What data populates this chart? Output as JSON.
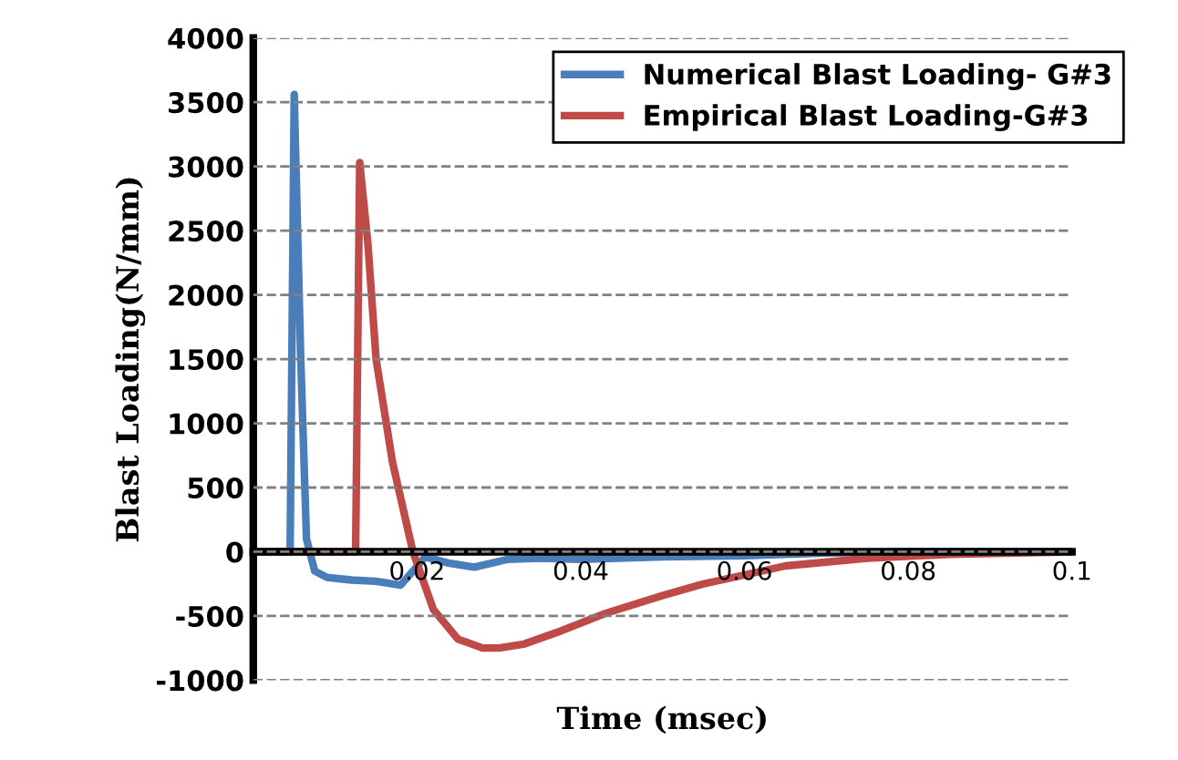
{
  "chart_data": {
    "type": "line",
    "xlabel": "Time (msec)",
    "ylabel": "Blast Loading(N/mm)",
    "xlim": [
      0,
      0.1
    ],
    "ylim": [
      -1000,
      4000
    ],
    "xticks": [
      {
        "value": 0,
        "label": null
      },
      0.02,
      0.04,
      0.06,
      0.08,
      0.1
    ],
    "yticks": [
      -1000,
      -500,
      0,
      500,
      1000,
      1500,
      2000,
      2500,
      3000,
      3500,
      4000
    ],
    "grid": "y",
    "legend": "top right",
    "marker": "none",
    "line_style": "solid",
    "series": [
      {
        "name": "Numerical Blast Loading- G#3",
        "color": "#4a7ebb",
        "x": [
          0,
          0.0045,
          0.005,
          0.0058,
          0.0065,
          0.0075,
          0.009,
          0.012,
          0.015,
          0.018,
          0.0195,
          0.021,
          0.024,
          0.027,
          0.031,
          0.035,
          0.04,
          0.05,
          0.06,
          0.07,
          0.08,
          0.1
        ],
        "values": [
          0,
          0,
          3560,
          1500,
          100,
          -150,
          -200,
          -220,
          -230,
          -260,
          -150,
          -40,
          -90,
          -120,
          -60,
          -50,
          -60,
          -40,
          -30,
          -10,
          0,
          0
        ]
      },
      {
        "name": "Empirical Blast Loading-G#3",
        "color": "#be4b48",
        "x": [
          0,
          0.0125,
          0.013,
          0.014,
          0.015,
          0.017,
          0.0195,
          0.022,
          0.025,
          0.028,
          0.03,
          0.033,
          0.037,
          0.043,
          0.05,
          0.055,
          0.065,
          0.075,
          0.085,
          0.1
        ],
        "values": [
          0,
          0,
          3030,
          2400,
          1500,
          700,
          0,
          -450,
          -680,
          -750,
          -750,
          -720,
          -630,
          -480,
          -340,
          -250,
          -110,
          -50,
          -20,
          0
        ]
      }
    ]
  }
}
